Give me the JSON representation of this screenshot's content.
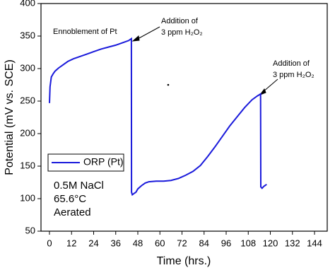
{
  "chart_data": {
    "type": "line",
    "x_label": "Time (hrs.)",
    "y_label": "Potential (mV vs. SCE)",
    "x": [
      0,
      0.3,
      1,
      2,
      3,
      5,
      7,
      10,
      13,
      16,
      20,
      24,
      28,
      32,
      36,
      40,
      43,
      44.5,
      44.6,
      45,
      46,
      47,
      48,
      50,
      52,
      54,
      58,
      62,
      66,
      70,
      74,
      78,
      82,
      86,
      90,
      94,
      98,
      102,
      106,
      110,
      113,
      114.7,
      114.8,
      115.5,
      116.5,
      118
    ],
    "series": [
      {
        "name": "ORP (Pt)",
        "color": "#1a1adb",
        "values": [
          247,
          272,
          287,
          292,
          296,
          301,
          305,
          311,
          315,
          318,
          322,
          326,
          330,
          333,
          336,
          340,
          343,
          346,
          110,
          106,
          108,
          110,
          115,
          120,
          124,
          126,
          127,
          127,
          128,
          131,
          136,
          142,
          151,
          165,
          180,
          196,
          212,
          226,
          240,
          252,
          258,
          261,
          118,
          116,
          119,
          122
        ]
      }
    ],
    "marker": {
      "x": 64.5,
      "y": 275
    },
    "xlim": [
      -4.6,
      150.9
    ],
    "xticks": [
      0,
      12,
      24,
      36,
      48,
      60,
      72,
      84,
      96,
      108,
      120,
      132,
      144
    ],
    "ylim": [
      50,
      400
    ],
    "yticks": [
      50,
      100,
      150,
      200,
      250,
      300,
      350,
      400
    ],
    "legend": "lower left",
    "annotations": [
      "Ennoblement of Pt",
      "Addition of",
      "3 ppm H₂O₂",
      "Addition of",
      "3 ppm H₂O₂"
    ],
    "conditions": [
      "0.5M NaCl",
      "65.6°C",
      "Aerated"
    ]
  }
}
